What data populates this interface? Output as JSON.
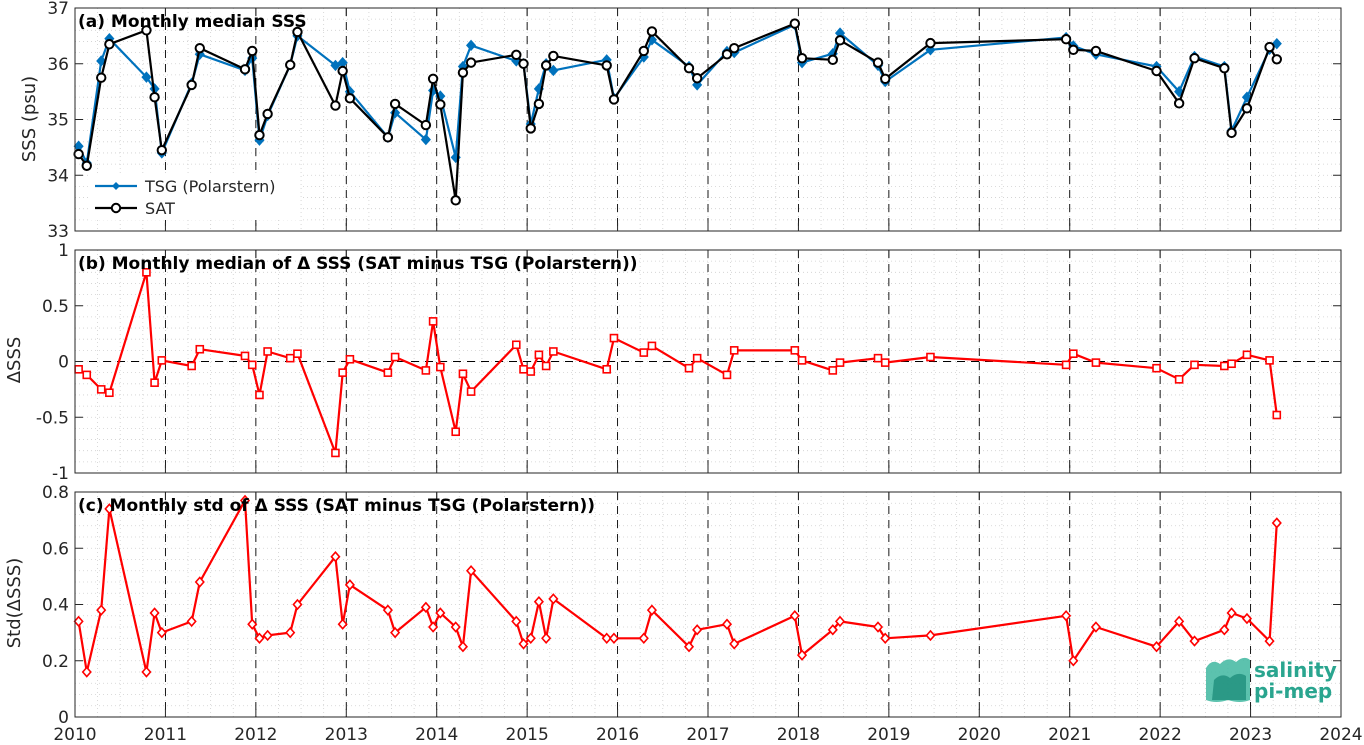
{
  "figure": {
    "xticks": [
      2010,
      2011,
      2012,
      2013,
      2014,
      2015,
      2016,
      2017,
      2018,
      2019,
      2020,
      2021,
      2022,
      2023,
      2024
    ],
    "xtick_labels": [
      "2010",
      "2011",
      "2012",
      "2013",
      "2014",
      "2015",
      "2016",
      "2017",
      "2018",
      "2019",
      "2020",
      "2021",
      "2022",
      "2023",
      "2024"
    ],
    "xlim": [
      2010,
      2024
    ],
    "colors": {
      "tsg": "#0072bd",
      "sat": "#000000",
      "delta": "#ff0000",
      "grid": "#cfcfcf",
      "axes": "#262626"
    }
  },
  "logo": {
    "line1": "salinity",
    "line2": "pi-mep"
  },
  "chart_data": [
    {
      "type": "line",
      "title": "(a) Monthly median SSS",
      "xlabel": "",
      "ylabel": "SSS (psu)",
      "ylim": [
        33,
        37
      ],
      "yticks": [
        33,
        34,
        35,
        36,
        37
      ],
      "ytick_labels": [
        "33",
        "34",
        "35",
        "36",
        "37"
      ],
      "grid": "dotted",
      "legend_position": "lower-left",
      "series": [
        {
          "name": "TSG (Polarstern)",
          "marker": "diamond",
          "color": "#0072bd",
          "points": [
            [
              2010.04,
              34.52
            ],
            [
              2010.13,
              34.22
            ],
            [
              2010.29,
              36.05
            ],
            [
              2010.38,
              36.45
            ],
            [
              2010.79,
              35.76
            ],
            [
              2010.88,
              35.55
            ],
            [
              2010.96,
              34.4
            ],
            [
              2011.29,
              35.65
            ],
            [
              2011.38,
              36.17
            ],
            [
              2011.88,
              35.88
            ],
            [
              2011.96,
              36.1
            ],
            [
              2012.04,
              34.63
            ],
            [
              2012.13,
              35.07
            ],
            [
              2012.38,
              35.98
            ],
            [
              2012.46,
              36.5
            ],
            [
              2012.88,
              35.97
            ],
            [
              2012.96,
              36.02
            ],
            [
              2013.04,
              35.5
            ],
            [
              2013.46,
              34.68
            ],
            [
              2013.54,
              35.12
            ],
            [
              2013.88,
              34.64
            ],
            [
              2013.96,
              35.52
            ],
            [
              2014.04,
              35.42
            ],
            [
              2014.21,
              34.32
            ],
            [
              2014.29,
              35.95
            ],
            [
              2014.38,
              36.33
            ],
            [
              2014.88,
              36.05
            ],
            [
              2014.96,
              36.0
            ],
            [
              2015.04,
              34.92
            ],
            [
              2015.13,
              35.55
            ],
            [
              2015.21,
              36.0
            ],
            [
              2015.29,
              35.88
            ],
            [
              2015.88,
              36.07
            ],
            [
              2015.96,
              35.38
            ],
            [
              2016.29,
              36.12
            ],
            [
              2016.38,
              36.43
            ],
            [
              2016.79,
              35.95
            ],
            [
              2016.88,
              35.62
            ],
            [
              2017.21,
              36.22
            ],
            [
              2017.29,
              36.2
            ],
            [
              2017.96,
              36.7
            ],
            [
              2018.04,
              36.02
            ],
            [
              2018.38,
              36.18
            ],
            [
              2018.46,
              36.55
            ],
            [
              2018.88,
              35.97
            ],
            [
              2018.96,
              35.68
            ],
            [
              2019.46,
              36.25
            ],
            [
              2020.96,
              36.47
            ],
            [
              2021.04,
              36.32
            ],
            [
              2021.29,
              36.17
            ],
            [
              2021.96,
              35.95
            ],
            [
              2022.21,
              35.5
            ],
            [
              2022.38,
              36.13
            ],
            [
              2022.71,
              35.95
            ],
            [
              2022.79,
              34.8
            ],
            [
              2022.96,
              35.4
            ],
            [
              2023.21,
              36.26
            ],
            [
              2023.29,
              36.36
            ]
          ]
        },
        {
          "name": "SAT",
          "marker": "circle",
          "color": "#000000",
          "points": [
            [
              2010.04,
              34.38
            ],
            [
              2010.13,
              34.17
            ],
            [
              2010.29,
              35.75
            ],
            [
              2010.38,
              36.35
            ],
            [
              2010.79,
              36.6
            ],
            [
              2010.88,
              35.4
            ],
            [
              2010.96,
              34.45
            ],
            [
              2011.29,
              35.62
            ],
            [
              2011.38,
              36.28
            ],
            [
              2011.88,
              35.9
            ],
            [
              2011.96,
              36.23
            ],
            [
              2012.04,
              34.72
            ],
            [
              2012.13,
              35.1
            ],
            [
              2012.38,
              35.98
            ],
            [
              2012.46,
              36.57
            ],
            [
              2012.88,
              35.25
            ],
            [
              2012.96,
              35.87
            ],
            [
              2013.04,
              35.38
            ],
            [
              2013.46,
              34.68
            ],
            [
              2013.54,
              35.28
            ],
            [
              2013.88,
              34.9
            ],
            [
              2013.96,
              35.73
            ],
            [
              2014.04,
              35.27
            ],
            [
              2014.21,
              33.55
            ],
            [
              2014.29,
              35.84
            ],
            [
              2014.38,
              36.02
            ],
            [
              2014.88,
              36.16
            ],
            [
              2014.96,
              36.0
            ],
            [
              2015.04,
              34.84
            ],
            [
              2015.13,
              35.28
            ],
            [
              2015.21,
              35.97
            ],
            [
              2015.29,
              36.14
            ],
            [
              2015.88,
              35.97
            ],
            [
              2015.96,
              35.36
            ],
            [
              2016.29,
              36.23
            ],
            [
              2016.38,
              36.58
            ],
            [
              2016.79,
              35.92
            ],
            [
              2016.88,
              35.74
            ],
            [
              2017.21,
              36.17
            ],
            [
              2017.29,
              36.28
            ],
            [
              2017.96,
              36.72
            ],
            [
              2018.04,
              36.1
            ],
            [
              2018.38,
              36.07
            ],
            [
              2018.46,
              36.42
            ],
            [
              2018.88,
              36.02
            ],
            [
              2018.96,
              35.73
            ],
            [
              2019.46,
              36.37
            ],
            [
              2020.96,
              36.44
            ],
            [
              2021.04,
              36.25
            ],
            [
              2021.29,
              36.23
            ],
            [
              2021.96,
              35.87
            ],
            [
              2022.21,
              35.29
            ],
            [
              2022.38,
              36.1
            ],
            [
              2022.71,
              35.92
            ],
            [
              2022.79,
              34.76
            ],
            [
              2022.96,
              35.2
            ],
            [
              2023.21,
              36.3
            ],
            [
              2023.29,
              36.08
            ]
          ]
        }
      ]
    },
    {
      "type": "line",
      "title": "(b) Monthly median of Δ SSS (SAT minus TSG (Polarstern))",
      "xlabel": "",
      "ylabel": "ΔSSS",
      "ylim": [
        -1,
        1
      ],
      "yticks": [
        -1,
        -0.5,
        0,
        0.5,
        1
      ],
      "ytick_labels": [
        "-1",
        "-0.5",
        "0",
        "0.5",
        "1"
      ],
      "grid": "dotted",
      "reference_line": 0,
      "series": [
        {
          "marker": "square",
          "color": "#ff0000",
          "points": [
            [
              2010.04,
              -0.07
            ],
            [
              2010.13,
              -0.12
            ],
            [
              2010.29,
              -0.25
            ],
            [
              2010.38,
              -0.28
            ],
            [
              2010.79,
              0.8
            ],
            [
              2010.88,
              -0.19
            ],
            [
              2010.96,
              0.01
            ],
            [
              2011.29,
              -0.04
            ],
            [
              2011.38,
              0.11
            ],
            [
              2011.88,
              0.05
            ],
            [
              2011.96,
              -0.03
            ],
            [
              2012.04,
              -0.3
            ],
            [
              2012.13,
              0.09
            ],
            [
              2012.38,
              0.03
            ],
            [
              2012.46,
              0.07
            ],
            [
              2012.88,
              -0.82
            ],
            [
              2012.96,
              -0.1
            ],
            [
              2013.04,
              0.02
            ],
            [
              2013.46,
              -0.1
            ],
            [
              2013.54,
              0.04
            ],
            [
              2013.88,
              -0.08
            ],
            [
              2013.96,
              0.36
            ],
            [
              2014.04,
              -0.05
            ],
            [
              2014.21,
              -0.63
            ],
            [
              2014.29,
              -0.11
            ],
            [
              2014.38,
              -0.27
            ],
            [
              2014.88,
              0.15
            ],
            [
              2014.96,
              -0.07
            ],
            [
              2015.04,
              -0.09
            ],
            [
              2015.13,
              0.06
            ],
            [
              2015.21,
              -0.04
            ],
            [
              2015.29,
              0.09
            ],
            [
              2015.88,
              -0.07
            ],
            [
              2015.96,
              0.21
            ],
            [
              2016.29,
              0.08
            ],
            [
              2016.38,
              0.14
            ],
            [
              2016.79,
              -0.06
            ],
            [
              2016.88,
              0.03
            ],
            [
              2017.21,
              -0.12
            ],
            [
              2017.29,
              0.1
            ],
            [
              2017.96,
              0.1
            ],
            [
              2018.04,
              0.01
            ],
            [
              2018.38,
              -0.08
            ],
            [
              2018.46,
              -0.01
            ],
            [
              2018.88,
              0.03
            ],
            [
              2018.96,
              -0.01
            ],
            [
              2019.46,
              0.04
            ],
            [
              2020.96,
              -0.03
            ],
            [
              2021.04,
              0.07
            ],
            [
              2021.29,
              -0.01
            ],
            [
              2021.96,
              -0.06
            ],
            [
              2022.21,
              -0.16
            ],
            [
              2022.38,
              -0.03
            ],
            [
              2022.71,
              -0.04
            ],
            [
              2022.79,
              -0.02
            ],
            [
              2022.96,
              0.06
            ],
            [
              2023.21,
              0.01
            ],
            [
              2023.29,
              -0.48
            ]
          ]
        }
      ]
    },
    {
      "type": "line",
      "title": "(c) Monthly std of Δ SSS (SAT minus TSG (Polarstern))",
      "xlabel": "",
      "ylabel": "Std(ΔSSS)",
      "ylim": [
        0,
        0.8
      ],
      "yticks": [
        0,
        0.2,
        0.4,
        0.6,
        0.8
      ],
      "ytick_labels": [
        "0",
        "0.2",
        "0.4",
        "0.6",
        "0.8"
      ],
      "grid": "dotted",
      "series": [
        {
          "marker": "diamond",
          "color": "#ff0000",
          "points": [
            [
              2010.04,
              0.34
            ],
            [
              2010.13,
              0.16
            ],
            [
              2010.29,
              0.38
            ],
            [
              2010.38,
              0.74
            ],
            [
              2010.79,
              0.16
            ],
            [
              2010.88,
              0.37
            ],
            [
              2010.96,
              0.3
            ],
            [
              2011.29,
              0.34
            ],
            [
              2011.38,
              0.48
            ],
            [
              2011.88,
              0.77
            ],
            [
              2011.96,
              0.33
            ],
            [
              2012.04,
              0.28
            ],
            [
              2012.13,
              0.29
            ],
            [
              2012.38,
              0.3
            ],
            [
              2012.46,
              0.4
            ],
            [
              2012.88,
              0.57
            ],
            [
              2012.96,
              0.33
            ],
            [
              2013.04,
              0.47
            ],
            [
              2013.46,
              0.38
            ],
            [
              2013.54,
              0.3
            ],
            [
              2013.88,
              0.39
            ],
            [
              2013.96,
              0.32
            ],
            [
              2014.04,
              0.37
            ],
            [
              2014.21,
              0.32
            ],
            [
              2014.29,
              0.25
            ],
            [
              2014.38,
              0.52
            ],
            [
              2014.88,
              0.34
            ],
            [
              2014.96,
              0.26
            ],
            [
              2015.04,
              0.28
            ],
            [
              2015.13,
              0.41
            ],
            [
              2015.21,
              0.28
            ],
            [
              2015.29,
              0.42
            ],
            [
              2015.88,
              0.28
            ],
            [
              2015.96,
              0.28
            ],
            [
              2016.29,
              0.28
            ],
            [
              2016.38,
              0.38
            ],
            [
              2016.79,
              0.25
            ],
            [
              2016.88,
              0.31
            ],
            [
              2017.21,
              0.33
            ],
            [
              2017.29,
              0.26
            ],
            [
              2017.96,
              0.36
            ],
            [
              2018.04,
              0.22
            ],
            [
              2018.38,
              0.31
            ],
            [
              2018.46,
              0.34
            ],
            [
              2018.88,
              0.32
            ],
            [
              2018.96,
              0.28
            ],
            [
              2019.46,
              0.29
            ],
            [
              2020.96,
              0.36
            ],
            [
              2021.04,
              0.2
            ],
            [
              2021.29,
              0.32
            ],
            [
              2021.96,
              0.25
            ],
            [
              2022.21,
              0.34
            ],
            [
              2022.38,
              0.27
            ],
            [
              2022.71,
              0.31
            ],
            [
              2022.79,
              0.37
            ],
            [
              2022.96,
              0.35
            ],
            [
              2023.21,
              0.27
            ],
            [
              2023.29,
              0.69
            ]
          ]
        }
      ]
    }
  ]
}
